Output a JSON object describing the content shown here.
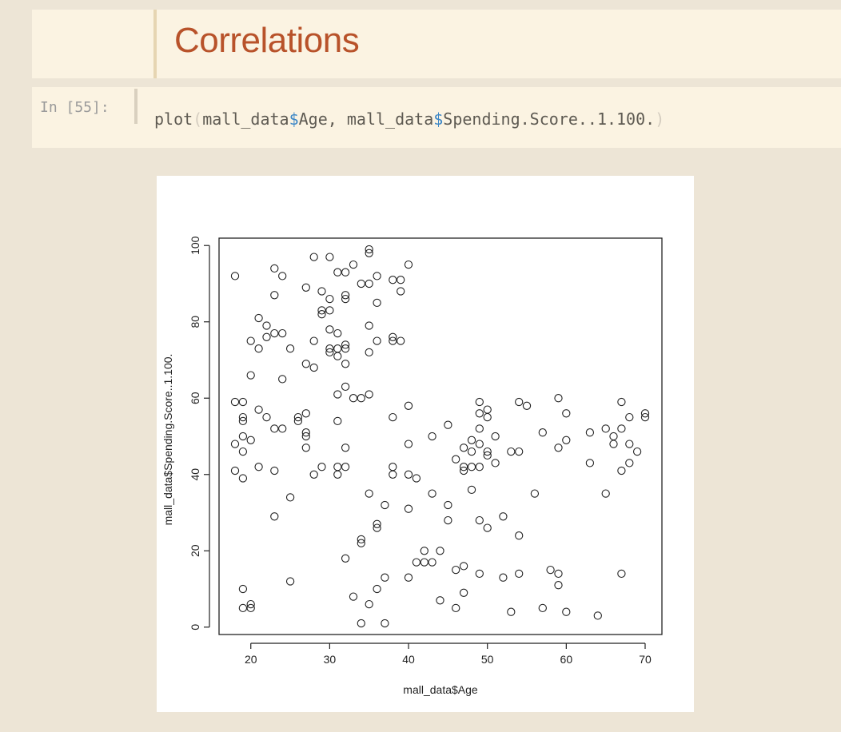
{
  "markdown_cell": {
    "heading": "Correlations"
  },
  "code_cell": {
    "prompt": "In [55]:",
    "code_parts": [
      "plot",
      "(",
      "mall_data",
      "$",
      "Age, ",
      "mall_data",
      "$",
      "Spending.Score..1.100.",
      ")"
    ]
  },
  "chart_data": {
    "type": "scatter",
    "title": "",
    "xlabel": "mall_data$Age",
    "ylabel": "mall_data$Spending.Score..1.100.",
    "xlim": [
      18,
      70
    ],
    "ylim": [
      1,
      99
    ],
    "x_ticks": [
      20,
      30,
      40,
      50,
      60,
      70
    ],
    "y_ticks": [
      0,
      20,
      40,
      60,
      80,
      100
    ],
    "marker": "open-circle",
    "grid": false,
    "points": [
      [
        18,
        92
      ],
      [
        18,
        59
      ],
      [
        18,
        48
      ],
      [
        18,
        41
      ],
      [
        19,
        59
      ],
      [
        19,
        55
      ],
      [
        19,
        54
      ],
      [
        19,
        50
      ],
      [
        19,
        46
      ],
      [
        19,
        39
      ],
      [
        19,
        10
      ],
      [
        19,
        5
      ],
      [
        20,
        75
      ],
      [
        20,
        66
      ],
      [
        20,
        49
      ],
      [
        20,
        6
      ],
      [
        20,
        5
      ],
      [
        21,
        81
      ],
      [
        21,
        73
      ],
      [
        21,
        57
      ],
      [
        21,
        42
      ],
      [
        22,
        79
      ],
      [
        22,
        76
      ],
      [
        22,
        55
      ],
      [
        23,
        94
      ],
      [
        23,
        87
      ],
      [
        23,
        77
      ],
      [
        23,
        52
      ],
      [
        23,
        41
      ],
      [
        23,
        29
      ],
      [
        24,
        92
      ],
      [
        24,
        77
      ],
      [
        24,
        65
      ],
      [
        24,
        52
      ],
      [
        25,
        73
      ],
      [
        25,
        34
      ],
      [
        25,
        12
      ],
      [
        26,
        55
      ],
      [
        26,
        54
      ],
      [
        27,
        89
      ],
      [
        27,
        69
      ],
      [
        27,
        56
      ],
      [
        27,
        51
      ],
      [
        27,
        50
      ],
      [
        27,
        47
      ],
      [
        28,
        97
      ],
      [
        28,
        75
      ],
      [
        28,
        68
      ],
      [
        28,
        40
      ],
      [
        29,
        88
      ],
      [
        29,
        83
      ],
      [
        29,
        82
      ],
      [
        29,
        42
      ],
      [
        30,
        97
      ],
      [
        30,
        86
      ],
      [
        30,
        83
      ],
      [
        30,
        78
      ],
      [
        30,
        73
      ],
      [
        30,
        72
      ],
      [
        31,
        93
      ],
      [
        31,
        77
      ],
      [
        31,
        73
      ],
      [
        31,
        71
      ],
      [
        31,
        61
      ],
      [
        31,
        54
      ],
      [
        31,
        42
      ],
      [
        31,
        40
      ],
      [
        32,
        93
      ],
      [
        32,
        87
      ],
      [
        32,
        86
      ],
      [
        32,
        74
      ],
      [
        32,
        73
      ],
      [
        32,
        69
      ],
      [
        32,
        63
      ],
      [
        32,
        47
      ],
      [
        32,
        42
      ],
      [
        32,
        18
      ],
      [
        33,
        95
      ],
      [
        33,
        60
      ],
      [
        33,
        8
      ],
      [
        34,
        90
      ],
      [
        34,
        60
      ],
      [
        34,
        23
      ],
      [
        34,
        22
      ],
      [
        34,
        1
      ],
      [
        35,
        99
      ],
      [
        35,
        98
      ],
      [
        35,
        90
      ],
      [
        35,
        79
      ],
      [
        35,
        72
      ],
      [
        35,
        61
      ],
      [
        35,
        35
      ],
      [
        35,
        6
      ],
      [
        36,
        92
      ],
      [
        36,
        85
      ],
      [
        36,
        75
      ],
      [
        36,
        27
      ],
      [
        36,
        26
      ],
      [
        36,
        10
      ],
      [
        37,
        32
      ],
      [
        37,
        13
      ],
      [
        37,
        1
      ],
      [
        38,
        91
      ],
      [
        38,
        76
      ],
      [
        38,
        75
      ],
      [
        38,
        55
      ],
      [
        38,
        42
      ],
      [
        38,
        40
      ],
      [
        39,
        91
      ],
      [
        39,
        88
      ],
      [
        39,
        75
      ],
      [
        40,
        95
      ],
      [
        40,
        58
      ],
      [
        40,
        48
      ],
      [
        40,
        40
      ],
      [
        40,
        31
      ],
      [
        40,
        13
      ],
      [
        41,
        39
      ],
      [
        41,
        17
      ],
      [
        42,
        20
      ],
      [
        42,
        17
      ],
      [
        43,
        50
      ],
      [
        43,
        35
      ],
      [
        43,
        17
      ],
      [
        44,
        20
      ],
      [
        44,
        7
      ],
      [
        45,
        53
      ],
      [
        45,
        32
      ],
      [
        45,
        28
      ],
      [
        46,
        44
      ],
      [
        46,
        15
      ],
      [
        46,
        5
      ],
      [
        47,
        47
      ],
      [
        47,
        42
      ],
      [
        47,
        41
      ],
      [
        47,
        16
      ],
      [
        47,
        9
      ],
      [
        48,
        49
      ],
      [
        48,
        46
      ],
      [
        48,
        42
      ],
      [
        48,
        36
      ],
      [
        49,
        59
      ],
      [
        49,
        56
      ],
      [
        49,
        52
      ],
      [
        49,
        48
      ],
      [
        49,
        42
      ],
      [
        49,
        28
      ],
      [
        49,
        14
      ],
      [
        50,
        57
      ],
      [
        50,
        55
      ],
      [
        50,
        46
      ],
      [
        50,
        45
      ],
      [
        50,
        26
      ],
      [
        51,
        50
      ],
      [
        51,
        43
      ],
      [
        52,
        29
      ],
      [
        52,
        13
      ],
      [
        53,
        46
      ],
      [
        53,
        4
      ],
      [
        54,
        59
      ],
      [
        54,
        46
      ],
      [
        54,
        24
      ],
      [
        54,
        14
      ],
      [
        55,
        58
      ],
      [
        56,
        35
      ],
      [
        57,
        51
      ],
      [
        57,
        5
      ],
      [
        58,
        15
      ],
      [
        59,
        60
      ],
      [
        59,
        47
      ],
      [
        59,
        14
      ],
      [
        59,
        11
      ],
      [
        60,
        56
      ],
      [
        60,
        49
      ],
      [
        60,
        4
      ],
      [
        63,
        51
      ],
      [
        63,
        43
      ],
      [
        64,
        3
      ],
      [
        65,
        52
      ],
      [
        65,
        35
      ],
      [
        66,
        50
      ],
      [
        66,
        48
      ],
      [
        67,
        59
      ],
      [
        67,
        52
      ],
      [
        67,
        41
      ],
      [
        67,
        14
      ],
      [
        68,
        55
      ],
      [
        68,
        48
      ],
      [
        68,
        43
      ],
      [
        69,
        46
      ],
      [
        70,
        56
      ],
      [
        70,
        55
      ]
    ]
  }
}
